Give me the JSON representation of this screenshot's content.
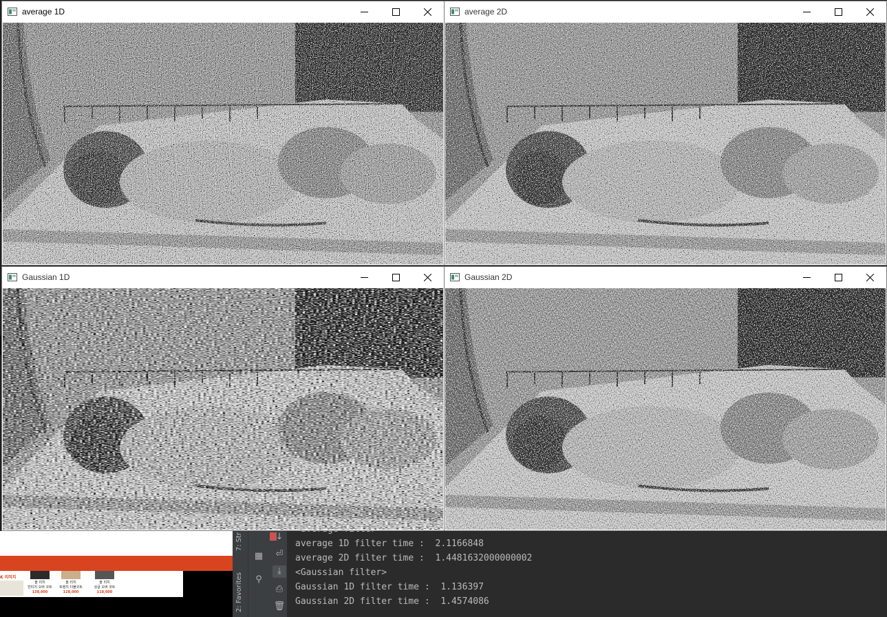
{
  "windows": [
    {
      "title": "average 1D",
      "style": "avg1d"
    },
    {
      "title": "average 2D",
      "style": "avg2d"
    },
    {
      "title": "Gaussian 1D",
      "style": "gauss1d"
    },
    {
      "title": "Gaussian 2D",
      "style": "gauss2d"
    }
  ],
  "window_controls": {
    "minimize": "minimize-icon",
    "maximize": "maximize-icon",
    "close": "close-icon"
  },
  "ide": {
    "side_tabs": [
      "7: Str",
      "2: Favorites"
    ],
    "console_lines": [
      "<average filter>",
      "average 1D filter time :  2.1166848",
      "average 2D filter time :  1.4481632000000002",
      "<Gaussian filter>",
      "Gaussian 1D filter time :  1.136397",
      "Gaussian 2D filter time :  1.4574086"
    ]
  },
  "background_browser": {
    "badge": "K 리미지",
    "products": [
      {
        "brand": "올 리치",
        "name": "빈티지 오버 코트",
        "price": "138,000"
      },
      {
        "brand": "올 리치",
        "name": "트렌치 더블코트",
        "price": "128,000"
      },
      {
        "brand": "올 리치",
        "name": "싱글 오버 코트",
        "price": "118,000"
      }
    ]
  },
  "colors": {
    "ide_bg": "#2b2b2b",
    "ide_panel": "#3c3f41",
    "console_text": "#bbbbbb",
    "stop_red": "#c75450",
    "browser_orange": "#d8441f"
  }
}
